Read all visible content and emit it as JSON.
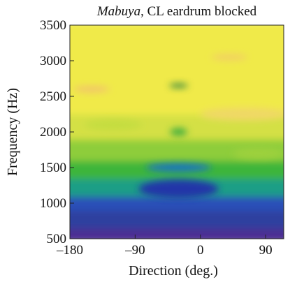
{
  "chart_data": {
    "type": "heatmap",
    "title_italic": "Mabuya",
    "title_rest": ", CL eardrum blocked",
    "xlabel": "Direction (deg.)",
    "ylabel": "Frequency (Hz)",
    "xlim": [
      -180,
      115
    ],
    "ylim": [
      500,
      3500
    ],
    "x_ticks": [
      -180,
      -90,
      0,
      90
    ],
    "x_tick_labels": [
      "–180",
      "–90",
      "0",
      "90"
    ],
    "y_ticks": [
      500,
      1000,
      1500,
      2000,
      2500,
      3000,
      3500
    ],
    "y_tick_labels": [
      "500",
      "1000",
      "1500",
      "2000",
      "2500",
      "3000",
      "3500"
    ],
    "grid": false,
    "colormap": [
      "#5b2a8a",
      "#2c3e9e",
      "#1e5fcf",
      "#1f9e6a",
      "#3dbb3d",
      "#a8d43a",
      "#e8e84a",
      "#f3e058",
      "#f2c060"
    ],
    "bands": [
      {
        "freq_min": 500,
        "freq_max": 700,
        "color": "#4b2e93"
      },
      {
        "freq_min": 700,
        "freq_max": 950,
        "color": "#2f3f9f"
      },
      {
        "freq_min": 950,
        "freq_max": 1150,
        "color": "#2a50b8"
      },
      {
        "freq_min": 1150,
        "freq_max": 1400,
        "color": "#1f9e86"
      },
      {
        "freq_min": 1400,
        "freq_max": 1650,
        "color": "#3db53a"
      },
      {
        "freq_min": 1650,
        "freq_max": 1950,
        "color": "#8ecd3a"
      },
      {
        "freq_min": 1950,
        "freq_max": 2300,
        "color": "#d4e044"
      },
      {
        "freq_min": 2300,
        "freq_max": 3500,
        "color": "#f0ea4a"
      }
    ],
    "features": [
      {
        "direction": -30,
        "freq": 1200,
        "width_deg": 110,
        "height_hz": 260,
        "color": "#2436a8"
      },
      {
        "direction": -30,
        "freq": 1500,
        "width_deg": 90,
        "height_hz": 120,
        "color": "#1d72c2"
      },
      {
        "direction": -30,
        "freq": 2650,
        "width_deg": 26,
        "height_hz": 50,
        "color": "#0f6a3a"
      },
      {
        "direction": -30,
        "freq": 2000,
        "width_deg": 24,
        "height_hz": 110,
        "color": "#3fae3c"
      },
      {
        "direction": -150,
        "freq": 2600,
        "width_deg": 50,
        "height_hz": 90,
        "color": "#f2c46a"
      },
      {
        "direction": 40,
        "freq": 3050,
        "width_deg": 50,
        "height_hz": 80,
        "color": "#f2cc66"
      },
      {
        "direction": 60,
        "freq": 2250,
        "width_deg": 120,
        "height_hz": 180,
        "color": "#f0d866"
      },
      {
        "direction": -120,
        "freq": 2100,
        "width_deg": 80,
        "height_hz": 150,
        "color": "#c4dd40"
      },
      {
        "direction": 80,
        "freq": 1700,
        "width_deg": 70,
        "height_hz": 150,
        "color": "#9ed13c"
      }
    ]
  }
}
